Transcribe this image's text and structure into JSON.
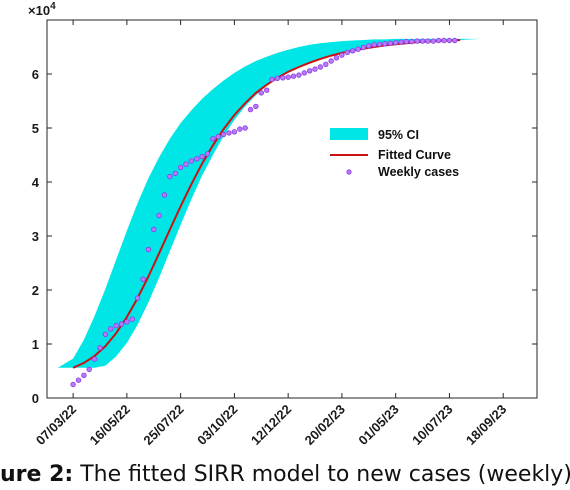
{
  "chart_data": {
    "type": "line",
    "y_exponent_label": "×10",
    "y_exponent_power": "4",
    "ylim": [
      0,
      70000
    ],
    "y_ticks": [
      0,
      10000,
      20000,
      30000,
      40000,
      50000,
      60000
    ],
    "y_tick_labels": [
      "0",
      "1",
      "2",
      "3",
      "4",
      "5",
      "6"
    ],
    "xlim": [
      "2022-02-01",
      "2023-11-01"
    ],
    "x_ticks": [
      "2022-03-07",
      "2022-05-16",
      "2022-07-25",
      "2022-10-03",
      "2022-12-12",
      "2023-02-20",
      "2023-05-01",
      "2023-07-10",
      "2023-09-18"
    ],
    "x_tick_labels": [
      "07/03/22",
      "16/05/22",
      "25/07/22",
      "03/10/22",
      "12/12/22",
      "20/02/23",
      "01/05/23",
      "10/07/23",
      "18/09/23"
    ],
    "grid": false,
    "legend_position": "right",
    "colors": {
      "ci": "#00e6e6",
      "fitted": "#cc1111",
      "weekly": "#a64dff"
    },
    "series": [
      {
        "name": "95% CI",
        "kind": "band",
        "x": [
          "2022-02-15",
          "2022-03-07",
          "2022-03-21",
          "2022-04-04",
          "2022-04-18",
          "2022-05-02",
          "2022-05-16",
          "2022-05-30",
          "2022-06-13",
          "2022-06-27",
          "2022-07-11",
          "2022-07-25",
          "2022-08-08",
          "2022-08-22",
          "2022-09-05",
          "2022-09-19",
          "2022-10-03",
          "2022-10-17",
          "2022-10-31",
          "2022-11-14",
          "2022-11-28",
          "2022-12-12",
          "2022-12-26",
          "2023-01-09",
          "2023-01-23",
          "2023-02-06",
          "2023-02-20",
          "2023-03-06",
          "2023-03-20",
          "2023-04-03",
          "2023-04-17",
          "2023-05-01",
          "2023-05-15",
          "2023-05-29",
          "2023-06-12",
          "2023-06-26",
          "2023-07-10",
          "2023-07-24",
          "2023-08-07",
          "2023-08-21"
        ],
        "lower": [
          5600,
          5600,
          5600,
          5600,
          6000,
          7700,
          10200,
          13600,
          17700,
          22300,
          27200,
          32100,
          36800,
          41200,
          45000,
          48500,
          51500,
          54000,
          56100,
          57800,
          59200,
          60400,
          61400,
          62200,
          62900,
          63500,
          64000,
          64400,
          64800,
          65100,
          65300,
          65500,
          65700,
          65900,
          66000,
          66100,
          66200,
          66300,
          66400,
          66500
        ],
        "upper": [
          5600,
          7300,
          10800,
          15200,
          20200,
          25600,
          31000,
          36100,
          40700,
          44600,
          48000,
          50900,
          53300,
          55400,
          57200,
          58800,
          60200,
          61400,
          62400,
          63200,
          63900,
          64500,
          65000,
          65400,
          65700,
          65900,
          66100,
          66200,
          66300,
          66400,
          66400,
          66500,
          66500,
          66500,
          66500,
          66500,
          66500,
          66500,
          66500,
          66500
        ]
      },
      {
        "name": "Fitted Curve",
        "kind": "line",
        "x": [
          "2022-03-07",
          "2022-03-21",
          "2022-04-04",
          "2022-04-18",
          "2022-05-02",
          "2022-05-16",
          "2022-05-30",
          "2022-06-13",
          "2022-06-27",
          "2022-07-11",
          "2022-07-25",
          "2022-08-08",
          "2022-08-22",
          "2022-09-05",
          "2022-09-19",
          "2022-10-03",
          "2022-10-17",
          "2022-10-31",
          "2022-11-14",
          "2022-11-28",
          "2022-12-12",
          "2022-12-26",
          "2023-01-09",
          "2023-01-23",
          "2023-02-06",
          "2023-02-20",
          "2023-03-06",
          "2023-03-20",
          "2023-04-03",
          "2023-04-17",
          "2023-05-01",
          "2023-05-15",
          "2023-05-29",
          "2023-06-12",
          "2023-06-26",
          "2023-07-10",
          "2023-07-24"
        ],
        "y": [
          5600,
          6500,
          7800,
          9600,
          12000,
          15000,
          18500,
          22500,
          26800,
          31200,
          35500,
          39600,
          43400,
          46800,
          49800,
          52400,
          54600,
          56500,
          58000,
          59300,
          60400,
          61300,
          62100,
          62800,
          63400,
          63900,
          64300,
          64700,
          65000,
          65300,
          65500,
          65700,
          65900,
          66000,
          66100,
          66200,
          66300
        ]
      },
      {
        "name": "Weekly cases",
        "kind": "scatter",
        "x": [
          "2022-03-07",
          "2022-03-14",
          "2022-03-21",
          "2022-03-28",
          "2022-04-04",
          "2022-04-11",
          "2022-04-18",
          "2022-04-25",
          "2022-05-02",
          "2022-05-09",
          "2022-05-16",
          "2022-05-23",
          "2022-05-30",
          "2022-06-06",
          "2022-06-13",
          "2022-06-20",
          "2022-06-27",
          "2022-07-04",
          "2022-07-11",
          "2022-07-18",
          "2022-07-25",
          "2022-08-01",
          "2022-08-08",
          "2022-08-15",
          "2022-08-22",
          "2022-08-29",
          "2022-09-05",
          "2022-09-12",
          "2022-09-19",
          "2022-09-26",
          "2022-10-03",
          "2022-10-10",
          "2022-10-17",
          "2022-10-24",
          "2022-10-31",
          "2022-11-07",
          "2022-11-14",
          "2022-11-21",
          "2022-11-28",
          "2022-12-05",
          "2022-12-12",
          "2022-12-19",
          "2022-12-26",
          "2023-01-02",
          "2023-01-09",
          "2023-01-16",
          "2023-01-23",
          "2023-01-30",
          "2023-02-06",
          "2023-02-13",
          "2023-02-20",
          "2023-02-27",
          "2023-03-06",
          "2023-03-13",
          "2023-03-20",
          "2023-03-27",
          "2023-04-03",
          "2023-04-10",
          "2023-04-17",
          "2023-04-24",
          "2023-05-01",
          "2023-05-08",
          "2023-05-15",
          "2023-05-22",
          "2023-05-29",
          "2023-06-05",
          "2023-06-12",
          "2023-06-19",
          "2023-06-26",
          "2023-07-03",
          "2023-07-10",
          "2023-07-17"
        ],
        "y": [
          2500,
          3300,
          4200,
          5300,
          7200,
          9300,
          11800,
          12800,
          13400,
          13700,
          14100,
          14600,
          18500,
          22000,
          27500,
          31200,
          33800,
          37600,
          41000,
          41600,
          42700,
          43300,
          43900,
          44300,
          44700,
          45200,
          48000,
          48400,
          48800,
          49100,
          49300,
          49800,
          50000,
          53400,
          54000,
          56500,
          57000,
          59000,
          59200,
          59300,
          59400,
          59600,
          59800,
          60200,
          60600,
          60900,
          61300,
          61800,
          62400,
          63000,
          63500,
          64000,
          64300,
          64600,
          64900,
          65200,
          65400,
          65500,
          65600,
          65700,
          65800,
          65900,
          66000,
          66000,
          66100,
          66100,
          66100,
          66100,
          66200,
          66200,
          66200,
          66200
        ]
      }
    ]
  },
  "caption": {
    "label": "ure 2:",
    "text": " The fitted SIRR model to new cases (weekly) v"
  }
}
